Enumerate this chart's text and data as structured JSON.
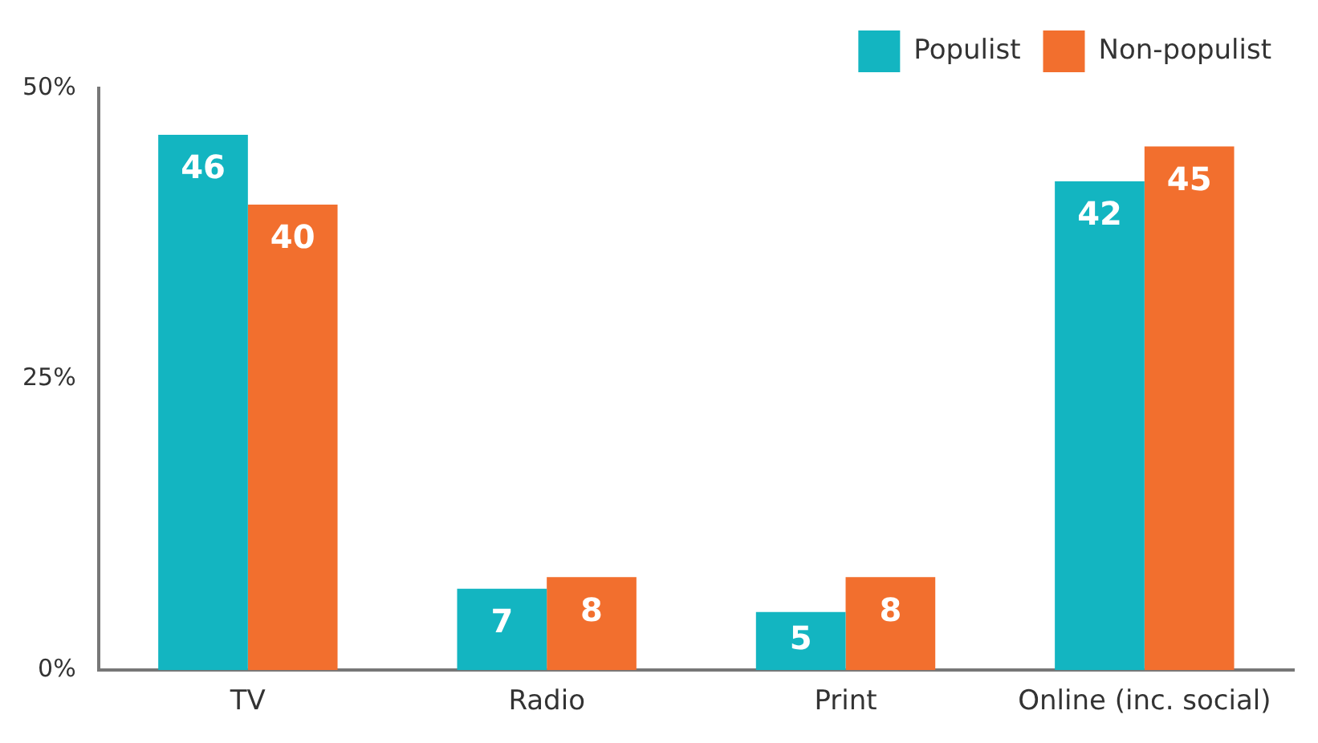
{
  "chart_data": {
    "type": "bar",
    "categories": [
      "TV",
      "Radio",
      "Print",
      "Online (inc. social)"
    ],
    "series": [
      {
        "name": "Populist",
        "color": "#13b5c1",
        "values": [
          46,
          7,
          5,
          42
        ]
      },
      {
        "name": "Non-populist",
        "color": "#f26f2e",
        "values": [
          40,
          8,
          8,
          45
        ]
      }
    ],
    "ylim": [
      0,
      50
    ],
    "yticks": [
      {
        "value": 0,
        "label": "0%"
      },
      {
        "value": 25,
        "label": "25%"
      },
      {
        "value": 50,
        "label": "50%"
      }
    ],
    "grid": false,
    "legend": "top right",
    "data_labels": true
  }
}
